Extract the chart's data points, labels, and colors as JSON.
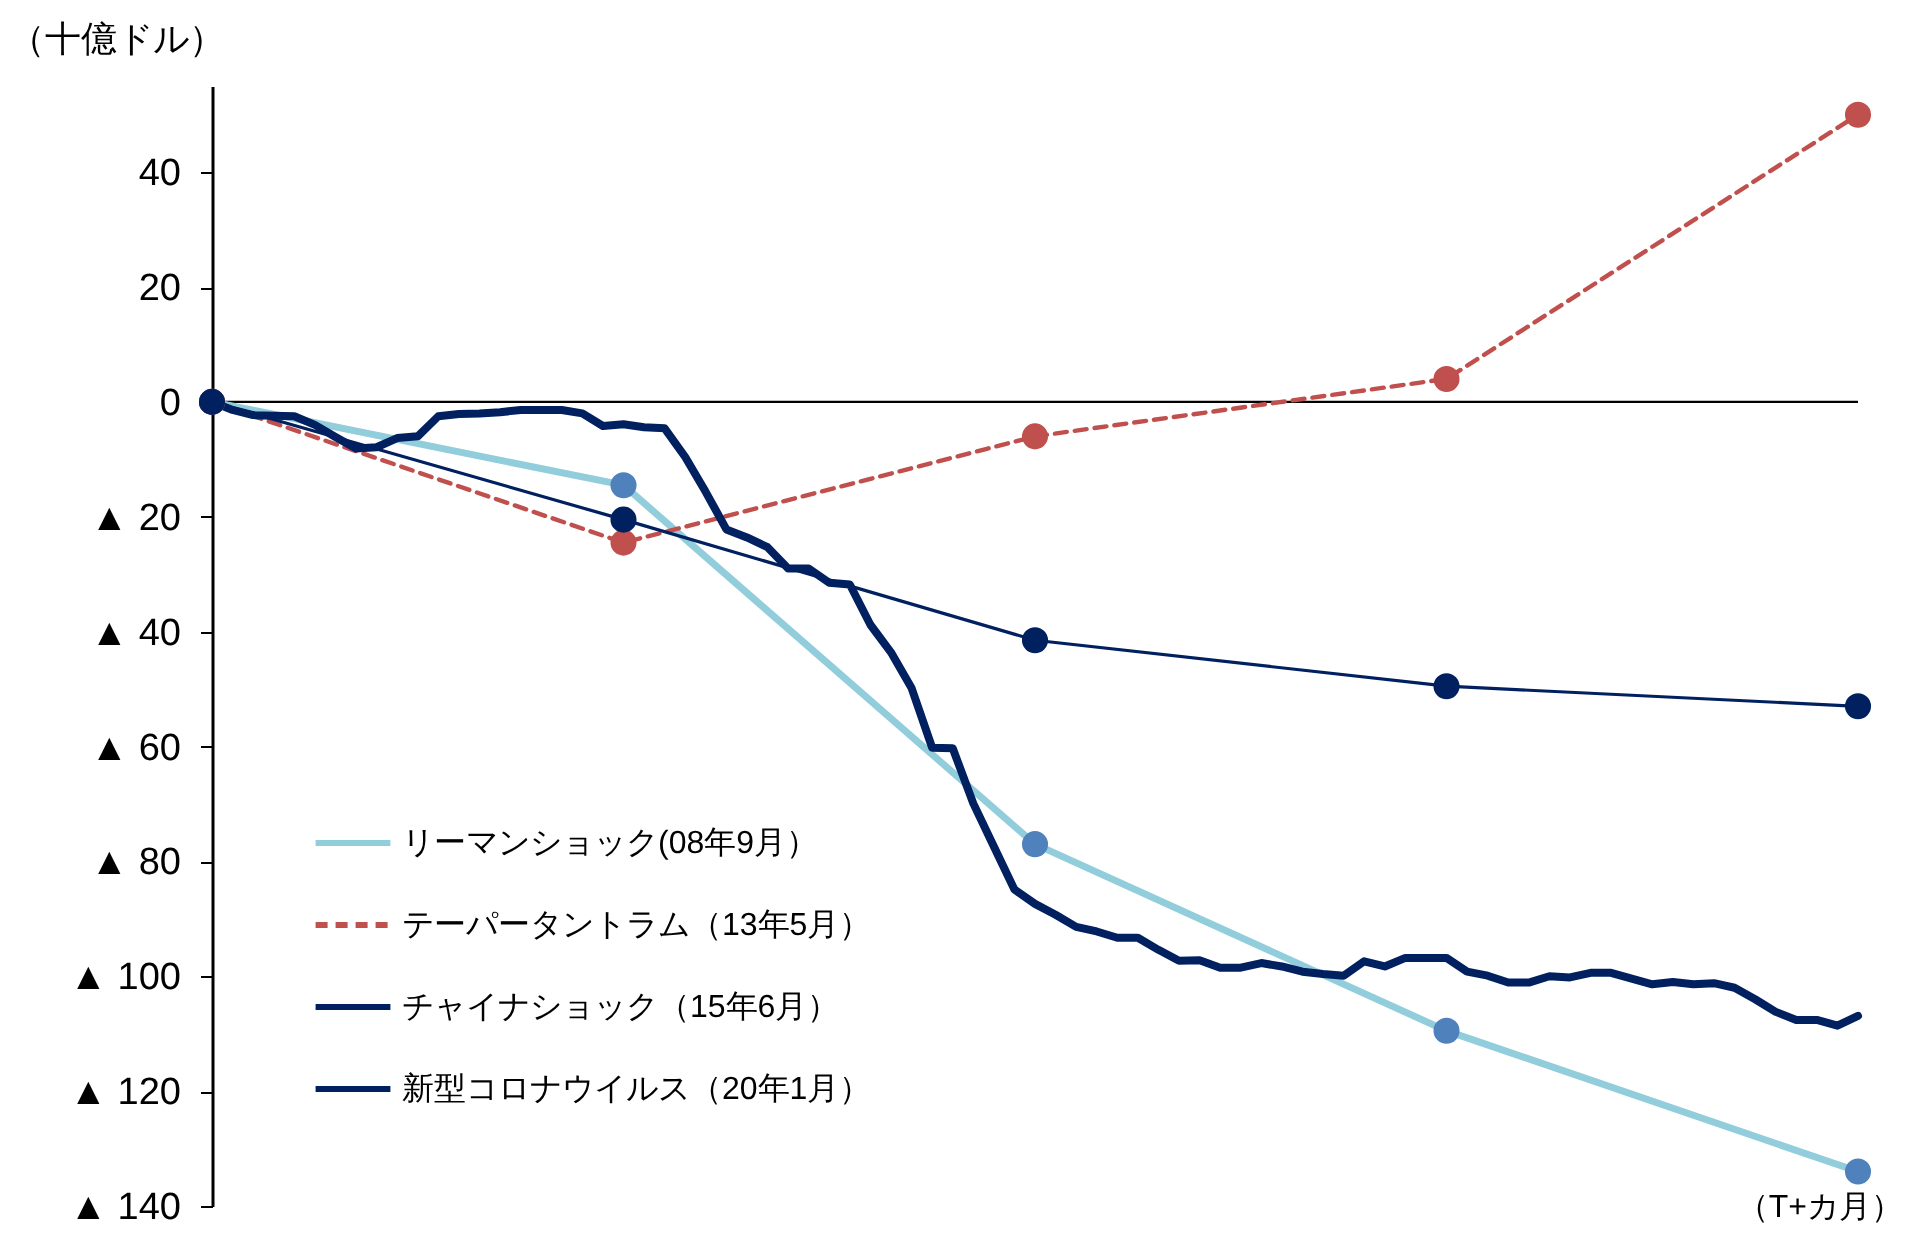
{
  "chart_data": {
    "type": "line",
    "ylabel": "（十億ドル）",
    "xlabel": "（T+カ月）",
    "ylim": [
      -140,
      55
    ],
    "categories": [
      null,
      null,
      null,
      null,
      null,
      null,
      null,
      null,
      null,
      null,
      null,
      null,
      null,
      null,
      null,
      null,
      null,
      null,
      null,
      null,
      null,
      null,
      null,
      null,
      null,
      null,
      null,
      null,
      null,
      null,
      null,
      null,
      null,
      null,
      null,
      null,
      null,
      null,
      null,
      null,
      null,
      null,
      null,
      null,
      null,
      null,
      null,
      null,
      null,
      null,
      null,
      null,
      null,
      null,
      null,
      null,
      null,
      null,
      null,
      null,
      null,
      null,
      null,
      null,
      null,
      null,
      null,
      null,
      null,
      null,
      null,
      null,
      null,
      null,
      null,
      null,
      null,
      null,
      null,
      null,
      null
    ],
    "yticks": [
      {
        "value": -140,
        "label": "▲ 140"
      },
      {
        "value": -120,
        "label": "▲ 120"
      },
      {
        "value": -100,
        "label": "▲ 100"
      },
      {
        "value": -80,
        "label": "▲ 80"
      },
      {
        "value": -60,
        "label": "▲ 60"
      },
      {
        "value": -40,
        "label": "▲ 40"
      },
      {
        "value": -20,
        "label": "▲ 20"
      },
      0,
      20,
      40
    ],
    "tick_labels": "y",
    "legend": "bottom left",
    "ref_lines": [
      {
        "axis": "y",
        "value": 0,
        "color": "#000000"
      }
    ],
    "series": [
      {
        "name": "リーマンショック(08年9月）",
        "color": "#92cddc",
        "marker": "circle",
        "line_style": "solid",
        "values": [
          0,
          null,
          null,
          null,
          null,
          null,
          null,
          null,
          null,
          null,
          null,
          null,
          null,
          null,
          null,
          null,
          null,
          null,
          null,
          null,
          -14.5,
          null,
          null,
          null,
          null,
          null,
          null,
          null,
          null,
          null,
          null,
          null,
          null,
          null,
          null,
          null,
          null,
          null,
          null,
          null,
          -77,
          null,
          null,
          null,
          null,
          null,
          null,
          null,
          null,
          null,
          null,
          null,
          null,
          null,
          null,
          null,
          null,
          null,
          null,
          null,
          -109.5,
          null,
          null,
          null,
          null,
          null,
          null,
          null,
          null,
          null,
          null,
          null,
          null,
          null,
          null,
          null,
          null,
          null,
          null,
          null,
          -134
        ]
      },
      {
        "name": "テーパータントラム（13年5月）",
        "color": "#c0504d",
        "marker": "circle",
        "line_style": "dashed",
        "values": [
          0,
          null,
          null,
          null,
          null,
          null,
          null,
          null,
          null,
          null,
          null,
          null,
          null,
          null,
          null,
          null,
          null,
          null,
          null,
          null,
          -24.5,
          null,
          null,
          null,
          null,
          null,
          null,
          null,
          null,
          null,
          null,
          null,
          null,
          null,
          null,
          null,
          null,
          null,
          null,
          null,
          -6,
          null,
          null,
          null,
          null,
          null,
          null,
          null,
          null,
          null,
          null,
          null,
          null,
          null,
          null,
          null,
          null,
          null,
          null,
          null,
          4,
          null,
          null,
          null,
          null,
          null,
          null,
          null,
          null,
          null,
          null,
          null,
          null,
          null,
          null,
          null,
          null,
          null,
          null,
          null,
          50
        ]
      },
      {
        "name": "チャイナショック（15年6月）",
        "color": "#002060",
        "marker": "circle",
        "line_style": "solid",
        "values": [
          0,
          null,
          null,
          null,
          null,
          null,
          null,
          null,
          null,
          null,
          null,
          null,
          null,
          null,
          null,
          null,
          null,
          null,
          null,
          null,
          -20.5,
          null,
          null,
          null,
          null,
          null,
          null,
          null,
          null,
          null,
          null,
          null,
          null,
          null,
          null,
          null,
          null,
          null,
          null,
          null,
          -41.5,
          null,
          null,
          null,
          null,
          null,
          null,
          null,
          null,
          null,
          null,
          null,
          null,
          null,
          null,
          null,
          null,
          null,
          null,
          null,
          -49.5,
          null,
          null,
          null,
          null,
          null,
          null,
          null,
          null,
          null,
          null,
          null,
          null,
          null,
          null,
          null,
          null,
          null,
          null,
          null,
          -53
        ]
      },
      {
        "name": "新型コロナウイルス（20年1月）",
        "color": "#002060",
        "marker": "none",
        "line_style": "solid",
        "values": [
          0,
          -1.4,
          -2.3,
          -2.4,
          -2.5,
          -4,
          -6.1,
          -8.1,
          -7.9,
          -6.3,
          -6,
          -2.5,
          -2.1,
          -2,
          -1.8,
          -1.4,
          -1.4,
          -1.4,
          -2,
          -4.2,
          -3.9,
          -4.4,
          -4.6,
          -9.6,
          -15.7,
          -22.2,
          -23.6,
          -25.3,
          -29,
          -29,
          -31.5,
          -31.8,
          -38.8,
          -43.6,
          -49.8,
          -60.2,
          -60.3,
          -69.9,
          -77.4,
          -84.9,
          -87.4,
          -89.3,
          -91.4,
          -92.2,
          -93.3,
          -93.3,
          -95.4,
          -97.3,
          -97.2,
          -98.5,
          -98.5,
          -97.7,
          -98.3,
          -99.2,
          -99.6,
          -99.9,
          -97.4,
          -98.3,
          -96.8,
          -96.8,
          -96.8,
          -99.2,
          -99.9,
          -101.1,
          -101.1,
          -100,
          -100.2,
          -99.4,
          -99.4,
          -100.4,
          -101.4,
          -101,
          -101.4,
          -101.2,
          -102,
          -104,
          -106.2,
          -107.6,
          -107.6,
          -108.6,
          -106.9
        ]
      }
    ]
  }
}
